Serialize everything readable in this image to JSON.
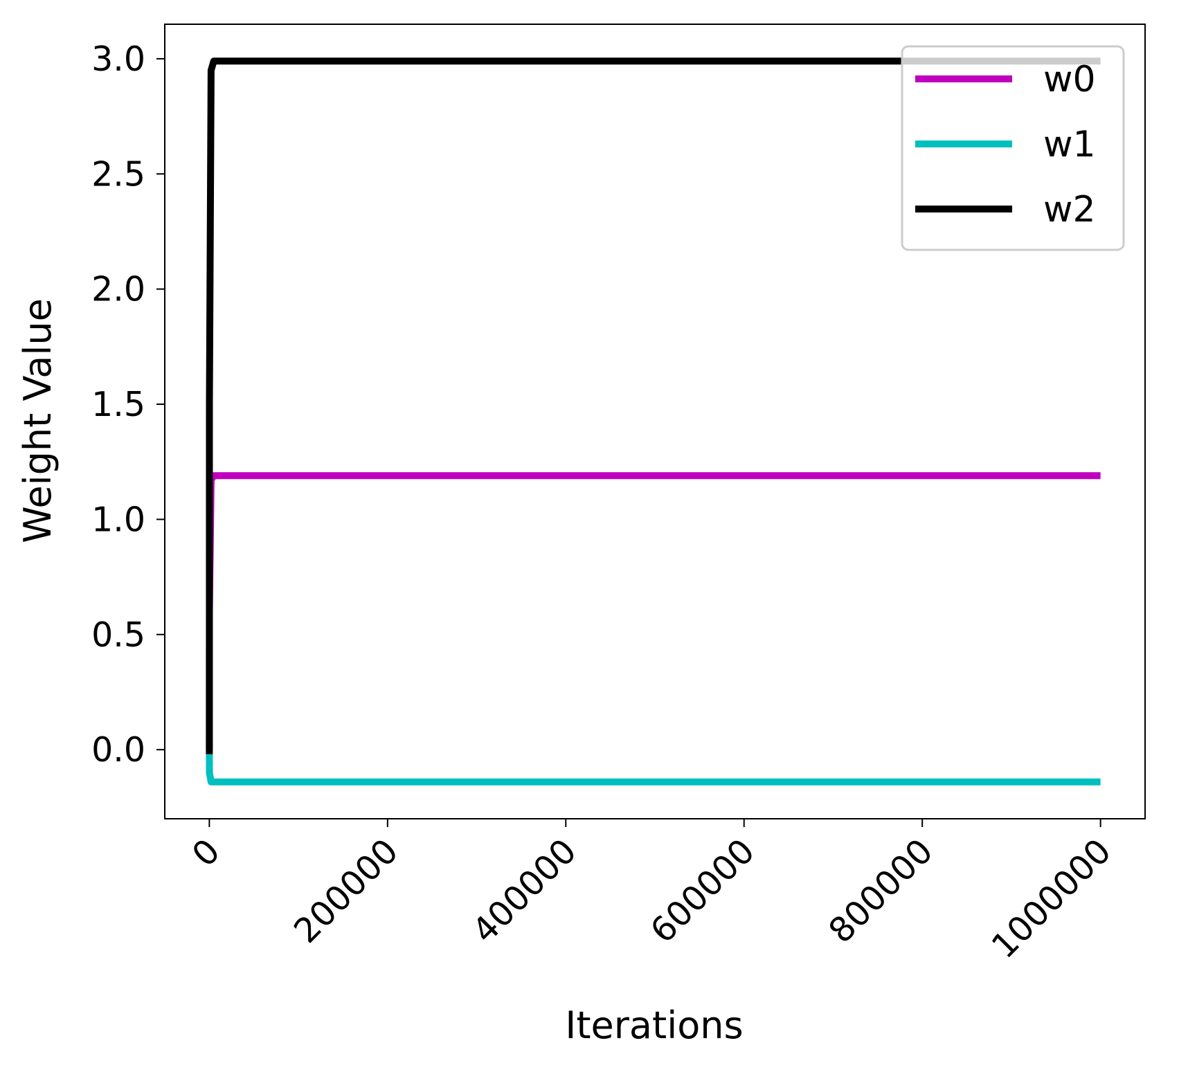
{
  "chart_data": {
    "type": "line",
    "title": "",
    "xlabel": "Iterations",
    "ylabel": "Weight Value",
    "xlim": [
      -50000,
      1050000
    ],
    "ylim": [
      -0.3,
      3.15
    ],
    "x_ticks": [
      0,
      200000,
      400000,
      600000,
      800000,
      1000000
    ],
    "x_tick_labels": [
      "0",
      "200000",
      "400000",
      "600000",
      "800000",
      "1000000"
    ],
    "x_tick_rotation_deg": 45,
    "y_ticks": [
      0.0,
      0.5,
      1.0,
      1.5,
      2.0,
      2.5,
      3.0
    ],
    "y_tick_labels": [
      "0.0",
      "0.5",
      "1.0",
      "1.5",
      "2.0",
      "2.5",
      "3.0"
    ],
    "grid": false,
    "legend_position": "top-right",
    "series": [
      {
        "name": "w0",
        "color": "#bf00bf",
        "x": [
          0,
          100,
          2000,
          5000,
          1000000
        ],
        "y": [
          0.0,
          0.6,
          1.17,
          1.19,
          1.19
        ]
      },
      {
        "name": "w1",
        "color": "#00bfbf",
        "x": [
          0,
          100,
          2000,
          5000,
          1000000
        ],
        "y": [
          -0.02,
          -0.1,
          -0.14,
          -0.14,
          -0.14
        ]
      },
      {
        "name": "w2",
        "color": "#000000",
        "x": [
          0,
          100,
          2000,
          5000,
          1000000
        ],
        "y": [
          -0.02,
          1.5,
          2.95,
          2.99,
          2.99
        ]
      }
    ]
  }
}
